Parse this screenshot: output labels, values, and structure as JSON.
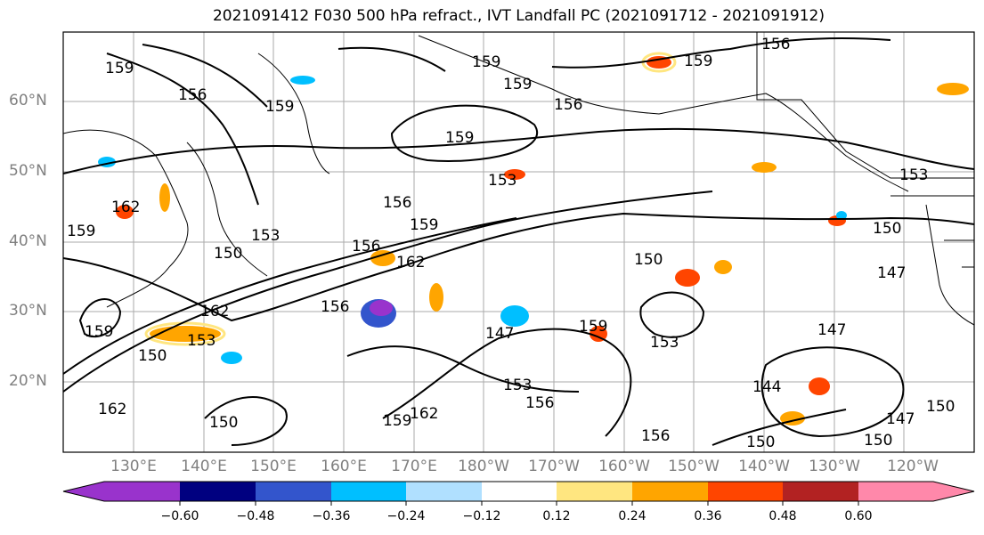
{
  "title": "2021091412 F030 500 hPa refract., IVT Landfall PC (2021091712 - 2021091912)",
  "map": {
    "lat_labels": [
      "60°N",
      "50°N",
      "40°N",
      "30°N",
      "20°N"
    ],
    "lon_labels": [
      "130°E",
      "140°E",
      "150°E",
      "160°E",
      "170°E",
      "180°W",
      "170°W",
      "160°W",
      "150°W",
      "140°W",
      "130°W",
      "120°W"
    ],
    "contour_labels": [
      "159",
      "156",
      "159",
      "159",
      "159",
      "156",
      "159",
      "153",
      "156",
      "156",
      "162",
      "159",
      "153",
      "150",
      "153",
      "147",
      "162",
      "156",
      "150",
      "159",
      "150",
      "153",
      "150",
      "156",
      "147",
      "147",
      "144",
      "153",
      "156",
      "159",
      "162",
      "159",
      "162",
      "150",
      "156",
      "150",
      "147",
      "150",
      "159",
      "153",
      "150",
      "162",
      "159"
    ]
  },
  "colorbar": {
    "tick_labels": [
      "−0.60",
      "−0.48",
      "−0.36",
      "−0.24",
      "−0.12",
      "0.12",
      "0.24",
      "0.36",
      "0.48",
      "0.60"
    ],
    "colors": [
      "#9933cc",
      "#000080",
      "#3355cc",
      "#00bfff",
      "#b0e0ff",
      "#ffffff",
      "#ffe680",
      "#ffa500",
      "#ff4500",
      "#b22222",
      "#ff88aa"
    ]
  }
}
